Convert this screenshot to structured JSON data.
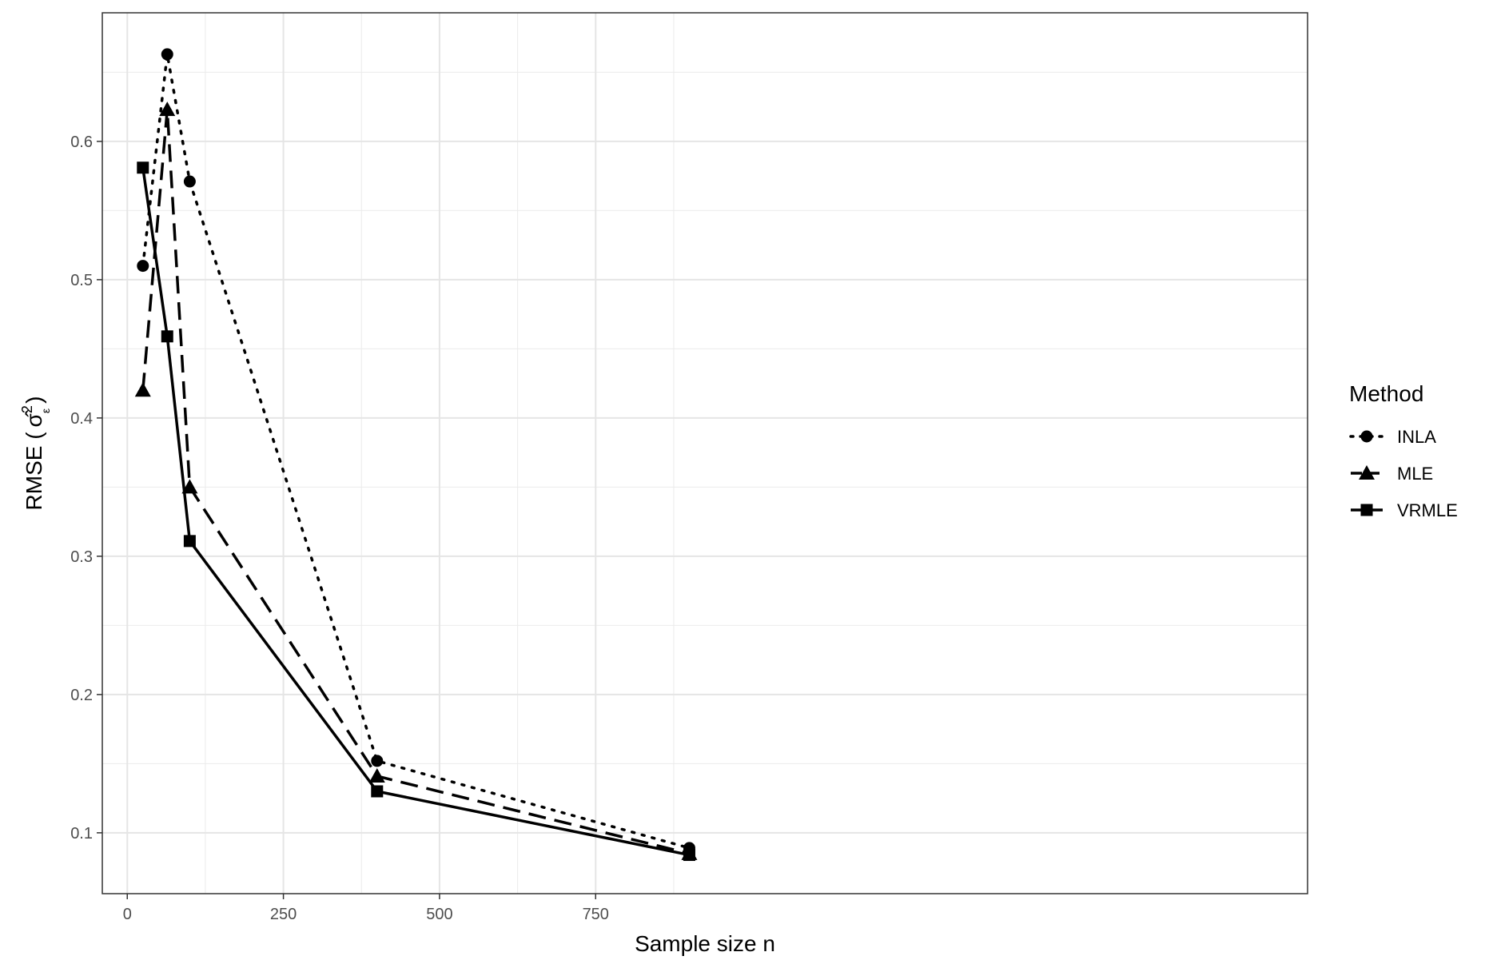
{
  "chart_data": {
    "type": "line",
    "xlabel": "Sample size n",
    "ylabel": "RMSE (",
    "ylabel_symbol": "σ̂",
    "ylabel_sup": "2",
    "ylabel_sub": "ε",
    "ylabel_close": ")",
    "xlim": [
      -40,
      1890
    ],
    "ylim": [
      0.056,
      0.693
    ],
    "xticks": [
      0,
      250,
      500,
      750
    ],
    "xtick_labels": [
      "0",
      "250",
      "500",
      "750"
    ],
    "yticks": [
      0.1,
      0.2,
      0.3,
      0.4,
      0.5,
      0.6
    ],
    "ytick_labels": [
      "0.1",
      "0.2",
      "0.3",
      "0.4",
      "0.5",
      "0.6"
    ],
    "grid": true,
    "legend_title": "Method",
    "legend_position": "right",
    "series": [
      {
        "name": "INLA",
        "linestyle": "dotted",
        "marker": "circle",
        "x": [
          25,
          64,
          100,
          400,
          900
        ],
        "y": [
          0.51,
          0.663,
          0.571,
          0.152,
          0.089
        ]
      },
      {
        "name": "MLE",
        "linestyle": "dashed",
        "marker": "triangle",
        "x": [
          25,
          64,
          100,
          400,
          900
        ],
        "y": [
          0.42,
          0.623,
          0.35,
          0.141,
          0.085
        ]
      },
      {
        "name": "VRMLE",
        "linestyle": "solid",
        "marker": "square",
        "x": [
          25,
          64,
          100,
          400,
          900
        ],
        "y": [
          0.581,
          0.459,
          0.311,
          0.13,
          0.084
        ]
      }
    ]
  }
}
